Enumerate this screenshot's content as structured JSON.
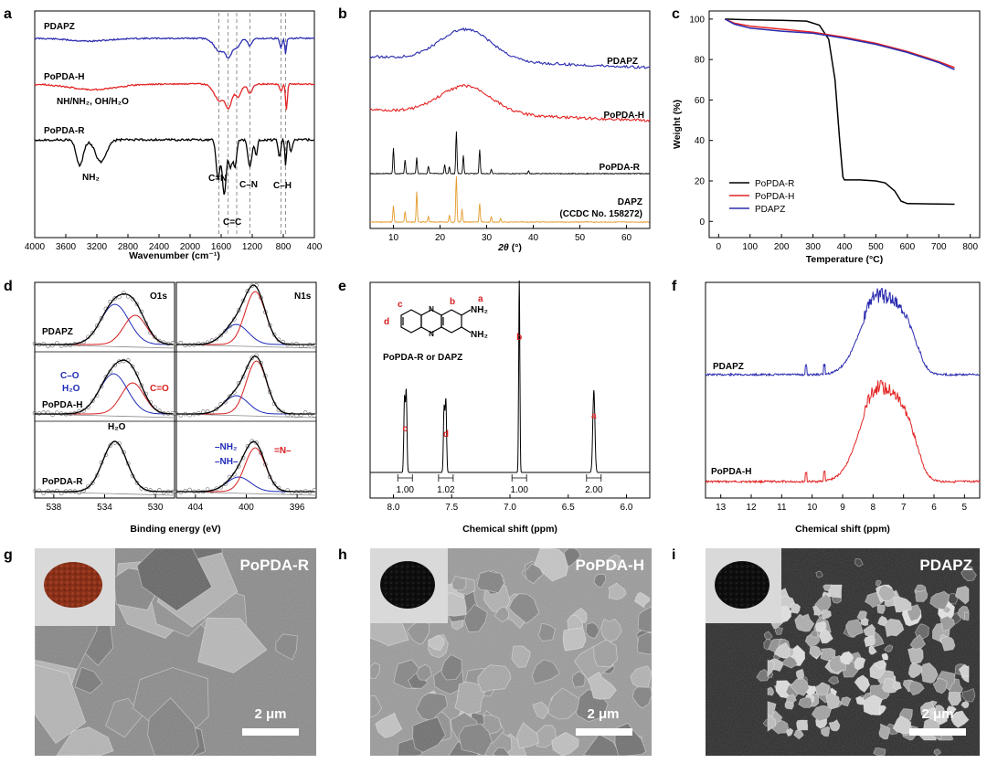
{
  "panels": {
    "a": {
      "letter": "a",
      "series": [
        "PDAPZ",
        "PoPDA-H",
        "PoPDA-R"
      ],
      "annotations": [
        "NH/NH₂, OH/H₂O",
        "NH₂",
        "C=N",
        "C=C",
        "C–N",
        "C–H"
      ],
      "xticks": [
        4000,
        3600,
        3200,
        2800,
        2400,
        2000,
        1600,
        1200,
        800,
        400
      ],
      "xlabel": "Wavenumber (cm⁻¹)",
      "dashed_lines": [
        1630,
        1510,
        1400,
        1230,
        830,
        770
      ]
    },
    "b": {
      "letter": "b",
      "series": [
        "PDAPZ",
        "PoPDA-H",
        "PoPDA-R",
        "DAPZ"
      ],
      "ccdc": "(CCDC No. 158272)",
      "xticks": [
        10,
        20,
        30,
        40,
        50,
        60
      ],
      "xlabel_theta": "2θ",
      "xlabel_unit": " (°)"
    },
    "c": {
      "letter": "c",
      "xticks": [
        0,
        100,
        200,
        300,
        400,
        500,
        600,
        700,
        800
      ],
      "yticks": [
        0,
        20,
        40,
        60,
        80,
        100
      ],
      "xlabel": "Temperature (°C)",
      "ylabel": "Weight (%)",
      "legend": [
        "PoPDA-R",
        "PoPDA-H",
        "PDAPZ"
      ],
      "colors": {
        "PoPDA-R": "#000000",
        "PoPDA-H": "#e32424",
        "PDAPZ": "#2b2bb0"
      }
    },
    "d": {
      "letter": "d",
      "o1s_title": "O1s",
      "n1s_title": "N1s",
      "series": [
        "PDAPZ",
        "PoPDA-H",
        "PoPDA-R"
      ],
      "o_labels": [
        "C–O",
        "H₂O",
        "C=O",
        "H₂O"
      ],
      "n_labels": [
        "–NH₂",
        "–NH–",
        "=N–"
      ],
      "o_xticks": [
        538,
        534,
        530
      ],
      "n_xticks": [
        404,
        400,
        396
      ],
      "xlabel": "Binding energy (eV)"
    },
    "e": {
      "letter": "e",
      "compound": "PoPDA-R or DAPZ",
      "struct_labels": [
        "c",
        "d",
        "b",
        "a",
        "NH₂",
        "NH₂"
      ],
      "peak_letters": [
        "c",
        "d",
        "b",
        "a"
      ],
      "integrals": [
        "1.00",
        "1.02",
        "1.00",
        "2.00"
      ],
      "xticks": [
        "8.0",
        "7.5",
        "7.0",
        "6.5",
        "6.0"
      ],
      "xlabel": "Chemical shift (ppm)"
    },
    "f": {
      "letter": "f",
      "series": [
        "PDAPZ",
        "PoPDA-H"
      ],
      "xticks": [
        13,
        12,
        11,
        10,
        9,
        8,
        7,
        6,
        5
      ],
      "xlabel": "Chemical shift (ppm)"
    },
    "g": {
      "letter": "g",
      "label": "PoPDA-R",
      "scale": "2 μm"
    },
    "h": {
      "letter": "h",
      "label": "PoPDA-H",
      "scale": "2 μm"
    },
    "i": {
      "letter": "i",
      "label": "PDAPZ",
      "scale": "2 μm"
    }
  },
  "chart_data": [
    {
      "type": "line",
      "panel": "c",
      "xlabel": "Temperature (°C)",
      "ylabel": "Weight (%)",
      "xlim": [
        -30,
        830
      ],
      "ylim": [
        -8,
        104
      ],
      "series": [
        {
          "name": "PoPDA-R",
          "x": [
            20,
            100,
            200,
            280,
            320,
            350,
            370,
            385,
            395,
            400,
            450,
            500,
            530,
            560,
            580,
            600,
            650,
            700,
            750
          ],
          "y": [
            100,
            99.6,
            99.4,
            99,
            97,
            90,
            70,
            40,
            22,
            20.5,
            20.5,
            20,
            19,
            15,
            10,
            8.8,
            8.7,
            8.6,
            8.5
          ]
        },
        {
          "name": "PoPDA-H",
          "x": [
            20,
            50,
            100,
            200,
            300,
            400,
            500,
            600,
            700,
            750
          ],
          "y": [
            100,
            98,
            96.5,
            95,
            93.5,
            91,
            88,
            84,
            79,
            76
          ]
        },
        {
          "name": "PDAPZ",
          "x": [
            20,
            50,
            100,
            200,
            300,
            400,
            500,
            600,
            700,
            750
          ],
          "y": [
            100,
            97.5,
            95.5,
            94,
            93,
            90.5,
            87.5,
            83.5,
            78.5,
            75
          ]
        }
      ]
    },
    {
      "type": "line",
      "panel": "e",
      "xlabel": "Chemical shift (ppm)",
      "xlim": [
        8.2,
        5.8
      ],
      "peaks": [
        {
          "label": "c",
          "ppm": 7.9,
          "integral": "1.00"
        },
        {
          "label": "d",
          "ppm": 7.55,
          "integral": "1.02"
        },
        {
          "label": "b",
          "ppm": 6.92,
          "integral": "1.00"
        },
        {
          "label": "a",
          "ppm": 6.28,
          "integral": "2.00"
        }
      ]
    },
    {
      "type": "line",
      "panel": "b",
      "xlabel": "2θ (°)",
      "xlim": [
        5,
        65
      ],
      "sharp_peaks_PoPDA_R": [
        10,
        12.5,
        15,
        17.5,
        21,
        22,
        23.5,
        25,
        28.5,
        31,
        39
      ],
      "sharp_peaks_DAPZ": [
        10,
        12.5,
        15,
        17.5,
        22,
        23.5,
        24.7,
        28.5,
        31,
        33
      ]
    }
  ]
}
